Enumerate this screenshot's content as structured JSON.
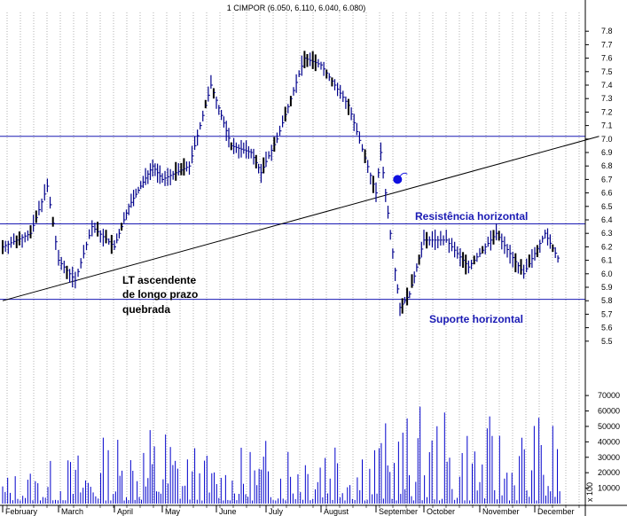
{
  "chart_data": {
    "type": "bar",
    "title": "1 CIMPOR (6.050, 6.110, 6.040, 6.080)",
    "colors": {
      "price_bar": "#00008b",
      "drop_bar": "#000000",
      "level_line": "#1a1ab4",
      "trend_line": "#000000",
      "grid": "#7f7f7f",
      "volume_bar": "#0000cc"
    },
    "icons": {
      "signal_marker": "bomb-icon"
    },
    "x_tick_labels": [
      "February",
      "March",
      "April",
      "May",
      "June",
      "July",
      "August",
      "September",
      "October",
      "November",
      "December"
    ],
    "price_axis": {
      "ticks": [
        5.5,
        5.6,
        5.7,
        5.8,
        5.9,
        6.0,
        6.1,
        6.2,
        6.3,
        6.4,
        6.5,
        6.6,
        6.7,
        6.8,
        6.9,
        7.0,
        7.1,
        7.2,
        7.3,
        7.4,
        7.5,
        7.6,
        7.7,
        7.8
      ],
      "ylim": [
        5.4,
        7.9
      ]
    },
    "volume_axis": {
      "ticks": [
        10000,
        20000,
        30000,
        40000,
        50000,
        60000,
        70000
      ],
      "tick_labels": [
        "10000",
        "20000",
        "30000",
        "40000",
        "50000",
        "60000",
        "70000"
      ],
      "ylim": [
        0,
        85000
      ]
    },
    "scale_label": "x 100",
    "horizontal_levels": [
      {
        "name": "resistance",
        "value": 6.37,
        "label": "Resistência horizontal"
      },
      {
        "name": "support",
        "value": 5.81,
        "label": "Suporte horizontal"
      },
      {
        "name": "top",
        "value": 7.02,
        "label": ""
      }
    ],
    "trendline": {
      "label_lines": [
        "LT ascendente",
        "de longo prazo",
        "quebrada"
      ],
      "start": {
        "x": 0.0,
        "y": 5.8
      },
      "end": {
        "x": 11.25,
        "y": 7.02
      }
    },
    "bomb_marker": {
      "x": 7.45,
      "y": 6.7
    },
    "price_series": {
      "x": [
        0.0,
        0.5,
        0.8,
        1.0,
        1.3,
        1.6,
        2.0,
        2.3,
        2.8,
        3.0,
        3.5,
        3.9,
        4.3,
        4.7,
        4.9,
        5.2,
        5.7,
        6.0,
        6.5,
        7.0,
        7.1,
        7.3,
        7.5,
        7.7,
        8.0,
        8.4,
        8.8,
        9.3,
        9.8,
        10.2,
        10.5
      ],
      "values": [
        6.2,
        6.3,
        6.65,
        6.1,
        5.95,
        6.35,
        6.2,
        6.5,
        6.8,
        6.7,
        6.8,
        7.4,
        6.95,
        6.9,
        6.75,
        7.0,
        7.6,
        7.55,
        7.25,
        6.6,
        6.9,
        6.3,
        5.75,
        5.85,
        6.25,
        6.25,
        6.05,
        6.3,
        6.0,
        6.3,
        6.08
      ]
    },
    "volume_bars": {
      "months": [
        0.0,
        1.0,
        2.0,
        3.0,
        4.0,
        5.0,
        6.0,
        7.0,
        8.0,
        9.0,
        10.0
      ],
      "values": [
        14000,
        22000,
        36000,
        45000,
        21000,
        33000,
        58000,
        40000,
        48000,
        42000,
        44000
      ]
    }
  }
}
